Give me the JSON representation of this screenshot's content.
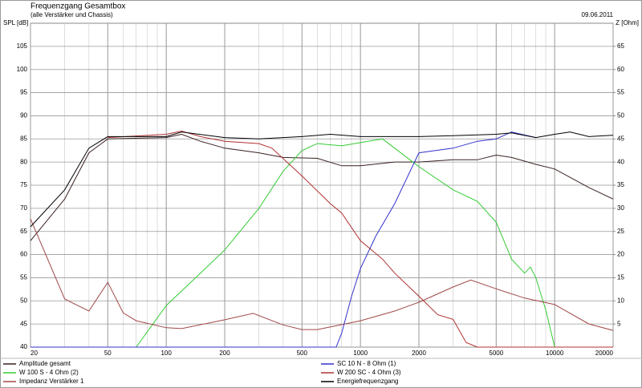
{
  "chart_data": {
    "type": "line",
    "title": "Frequenzgang Gesamtbox",
    "subtitle": "(alle Verstärker und Chassis)",
    "date": "09.06.2011",
    "y_label": "SPL [dB]",
    "y2_label": "Z [Ohm]",
    "log_x": true,
    "grid": true,
    "xlim": [
      20,
      20000
    ],
    "xticks": [
      20,
      50,
      100,
      200,
      500,
      1000,
      2000,
      5000,
      10000,
      20000
    ],
    "x_minor_ticks": [
      30,
      40,
      60,
      70,
      80,
      90,
      300,
      400,
      600,
      700,
      800,
      900,
      3000,
      4000,
      6000,
      7000,
      8000,
      9000
    ],
    "ylim": [
      40,
      110
    ],
    "yticks": [
      40,
      45,
      50,
      55,
      60,
      65,
      70,
      75,
      80,
      85,
      90,
      95,
      100,
      105
    ],
    "y2lim": [
      0,
      70
    ],
    "y2ticks": [
      5,
      10,
      15,
      20,
      25,
      30,
      35,
      40,
      45,
      50,
      55,
      60,
      65
    ],
    "series": [
      {
        "name": "Amplitude gesamt",
        "color": "#3a2020",
        "x": [
          20,
          30,
          40,
          50,
          100,
          120,
          150,
          200,
          300,
          400,
          600,
          800,
          1000,
          1500,
          2000,
          3000,
          4000,
          5000,
          6000,
          8000,
          10000,
          15000,
          20000
        ],
        "values": [
          63,
          72,
          82,
          85,
          85.3,
          86,
          84.5,
          83,
          82,
          81,
          80.8,
          79.2,
          79.2,
          80,
          80,
          80.5,
          80.5,
          81.5,
          81,
          79.5,
          78.5,
          74.5,
          72
        ]
      },
      {
        "name": "W 100 S - 4 Ohm (2)",
        "color": "#33cc33",
        "x": [
          70,
          100,
          150,
          200,
          300,
          400,
          500,
          600,
          800,
          1000,
          1300,
          1500,
          2000,
          3000,
          4000,
          5000,
          6000,
          7000,
          7500,
          8000,
          9000,
          10000
        ],
        "values": [
          40,
          49,
          56,
          61,
          70,
          78,
          82.5,
          84,
          83.5,
          84.2,
          85,
          83,
          79,
          74,
          71.5,
          67,
          59,
          56,
          57.3,
          55,
          48,
          40
        ]
      },
      {
        "name": "Impedanz Verstärker 1",
        "color": "#a04848",
        "axis": "y2",
        "x": [
          20,
          30,
          40,
          50,
          60,
          70,
          100,
          120,
          200,
          280,
          400,
          500,
          600,
          1000,
          1500,
          2000,
          3000,
          3700,
          5000,
          7000,
          10000,
          15000,
          20000
        ],
        "values": [
          27.7,
          10.4,
          7.8,
          14,
          7.4,
          5.7,
          4.2,
          4,
          5.9,
          7.3,
          4.8,
          3.8,
          3.8,
          5.7,
          7.8,
          9.7,
          13,
          14.5,
          12.6,
          10.6,
          9.2,
          5,
          3.6
        ]
      },
      {
        "name": "SC 10 N - 8 Ohm (1)",
        "color": "#3333cc",
        "x": [
          20,
          750,
          800,
          900,
          1000,
          1200,
          1500,
          2000,
          3000,
          4000,
          5000,
          6000,
          8000
        ],
        "values": [
          40,
          40,
          43,
          51,
          57,
          64,
          71,
          82,
          83,
          84.5,
          85,
          86.5,
          85.3
        ]
      },
      {
        "name": "W 200 SC - 4 Ohm (3)",
        "color": "#b03030",
        "x": [
          50,
          100,
          120,
          150,
          200,
          300,
          350,
          500,
          700,
          800,
          1000,
          1300,
          1500,
          2000,
          2500,
          3000,
          3500,
          4000,
          20000
        ],
        "values": [
          85.3,
          86,
          86.7,
          85.5,
          84.5,
          84,
          83,
          77,
          71,
          69,
          63,
          59,
          56,
          51,
          47,
          46,
          41,
          40,
          40
        ]
      },
      {
        "name": "Energiefrequenzgang",
        "color": "#000000",
        "x": [
          20,
          30,
          40,
          50,
          100,
          120,
          200,
          300,
          500,
          700,
          1000,
          2000,
          3000,
          5000,
          6000,
          8000,
          10000,
          12000,
          15000,
          20000
        ],
        "values": [
          66,
          74,
          83,
          85.5,
          85.5,
          86.5,
          85.3,
          85,
          85.5,
          86,
          85.5,
          85.5,
          85.7,
          86,
          86.3,
          85.3,
          86,
          86.5,
          85.5,
          85.8
        ]
      }
    ]
  }
}
